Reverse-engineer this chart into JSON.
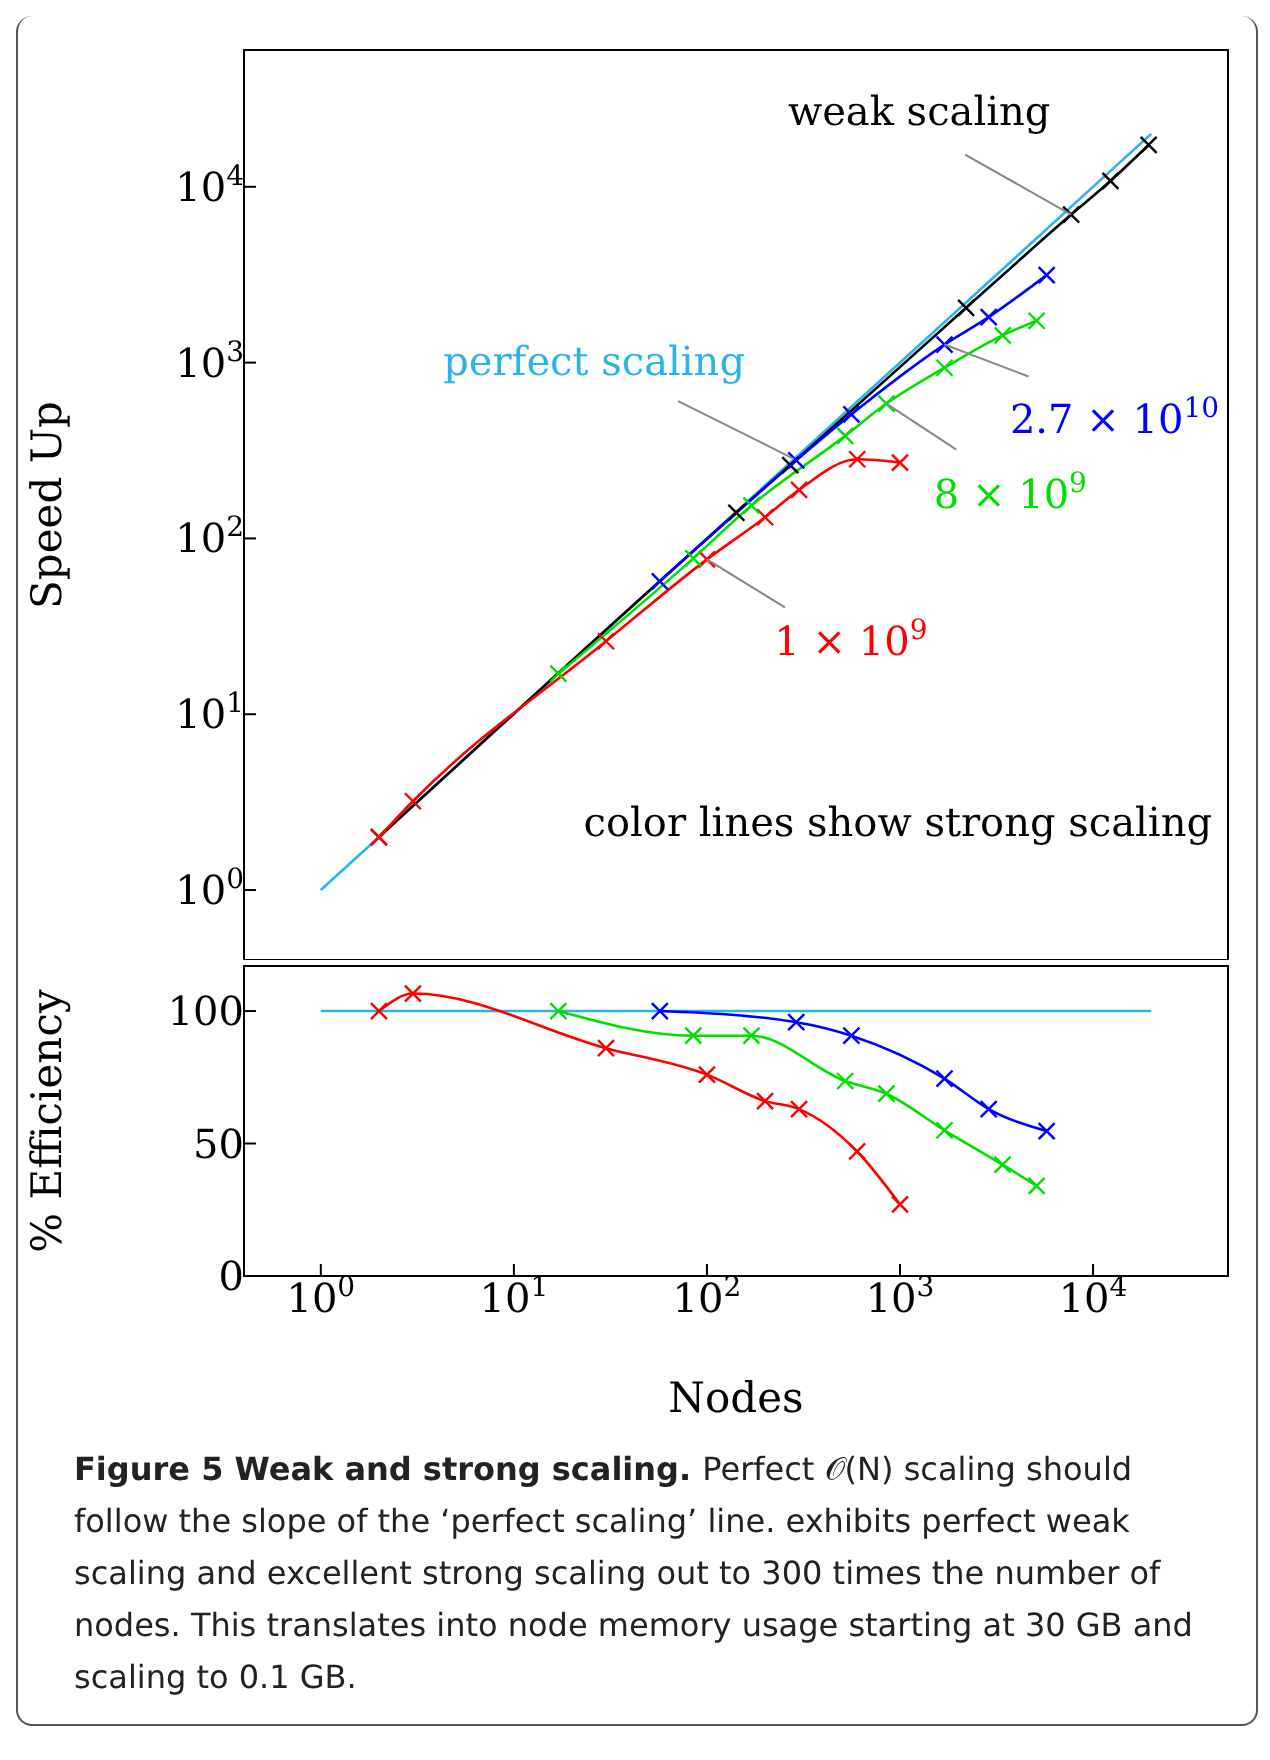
{
  "chart_data": [
    {
      "type": "line",
      "ylabel": "Speed Up",
      "log": "xy",
      "marker": "cross",
      "tick_labels": "y",
      "xlim": [
        0.4,
        50000
      ],
      "ylim": [
        0.4,
        60000
      ],
      "xticks": [
        {
          "value": 1,
          "label": null
        },
        {
          "value": 10,
          "label": null
        },
        {
          "value": 100,
          "label": null
        },
        {
          "value": 1000,
          "label": null
        },
        {
          "value": 10000,
          "label": null
        }
      ],
      "yticks": [
        {
          "value": 1,
          "label": "10$^{0}$"
        },
        {
          "value": 10,
          "label": "10$^{1}$"
        },
        {
          "value": 100,
          "label": "10$^{2}$"
        },
        {
          "value": 1000,
          "label": "10$^{3}$"
        },
        {
          "value": 10000,
          "label": "10$^{4}$"
        }
      ],
      "annotations": [
        "color lines show strong scaling"
      ],
      "series": [
        {
          "name": "perfect scaling",
          "color": "#29b5e8",
          "marker": "none",
          "x": [
            1,
            20000
          ],
          "values": [
            1,
            20000
          ]
        },
        {
          "name": "weak scaling",
          "color": "#000000",
          "x": [
            2,
            142,
            270,
            2200,
            7700,
            12300,
            19400
          ],
          "values": [
            2,
            140,
            261,
            2050,
            6950,
            10800,
            17300
          ]
        },
        {
          "name": "1 × 10$^{9}$",
          "color": "#ff0000",
          "x": [
            2,
            3,
            30,
            100,
            200,
            300,
            600,
            1000
          ],
          "values": [
            2,
            3.2,
            26,
            76,
            132,
            189,
            282,
            270
          ]
        },
        {
          "name": "8 × 10$^{9}$",
          "color": "#00e000",
          "x": [
            17,
            85,
            170,
            520,
            850,
            1700,
            3400,
            5100
          ],
          "values": [
            17,
            77,
            154,
            383,
            585,
            935,
            1430,
            1730
          ]
        },
        {
          "name": "2.7 × 10$^{10}$",
          "color": "#0000ff",
          "x": [
            57,
            290,
            560,
            1700,
            2880,
            5750
          ],
          "values": [
            57,
            278,
            508,
            1267,
            1814,
            3145
          ]
        }
      ]
    },
    {
      "type": "line",
      "ylabel": "% Efficiency",
      "xlabel": "Nodes",
      "log": "x",
      "marker": "cross",
      "xlim": [
        0.4,
        50000
      ],
      "ylim": [
        0,
        117
      ],
      "xticks": [
        {
          "value": 1,
          "label": "10$^{0}$"
        },
        {
          "value": 10,
          "label": "10$^{1}$"
        },
        {
          "value": 100,
          "label": "10$^{2}$"
        },
        {
          "value": 1000,
          "label": "10$^{3}$"
        },
        {
          "value": 10000,
          "label": "10$^{4}$"
        }
      ],
      "yticks": [
        0,
        50,
        100
      ],
      "annotations": [
        "Figure 5  Weak and strong scaling.",
        "Perfect 𝒪(N) scaling should follow the slope of the ‘perfect scaling’ line. exhibits perfect weak scaling and excellent strong scaling out to 300 times the number of nodes. This translates into node memory usage starting at 30 GB and scaling to 0.1 GB."
      ],
      "series": [
        {
          "color": "#29b5e8",
          "marker": "none",
          "x": [
            1,
            20000
          ],
          "values": [
            100,
            100
          ]
        },
        {
          "color": "#ff0000",
          "x": [
            2,
            3,
            30,
            100,
            200,
            300,
            600,
            1000
          ],
          "values": [
            100,
            106.6,
            86,
            76,
            66,
            63,
            47,
            27
          ]
        },
        {
          "color": "#00e000",
          "x": [
            17,
            85,
            170,
            520,
            850,
            1700,
            3400,
            5100
          ],
          "values": [
            100,
            90.7,
            90.7,
            73.6,
            68.8,
            55,
            42,
            34
          ]
        },
        {
          "color": "#0000ff",
          "x": [
            57,
            290,
            560,
            1700,
            2880,
            5750
          ],
          "values": [
            100,
            95.8,
            90.7,
            74.5,
            63,
            54.7
          ]
        }
      ]
    }
  ]
}
